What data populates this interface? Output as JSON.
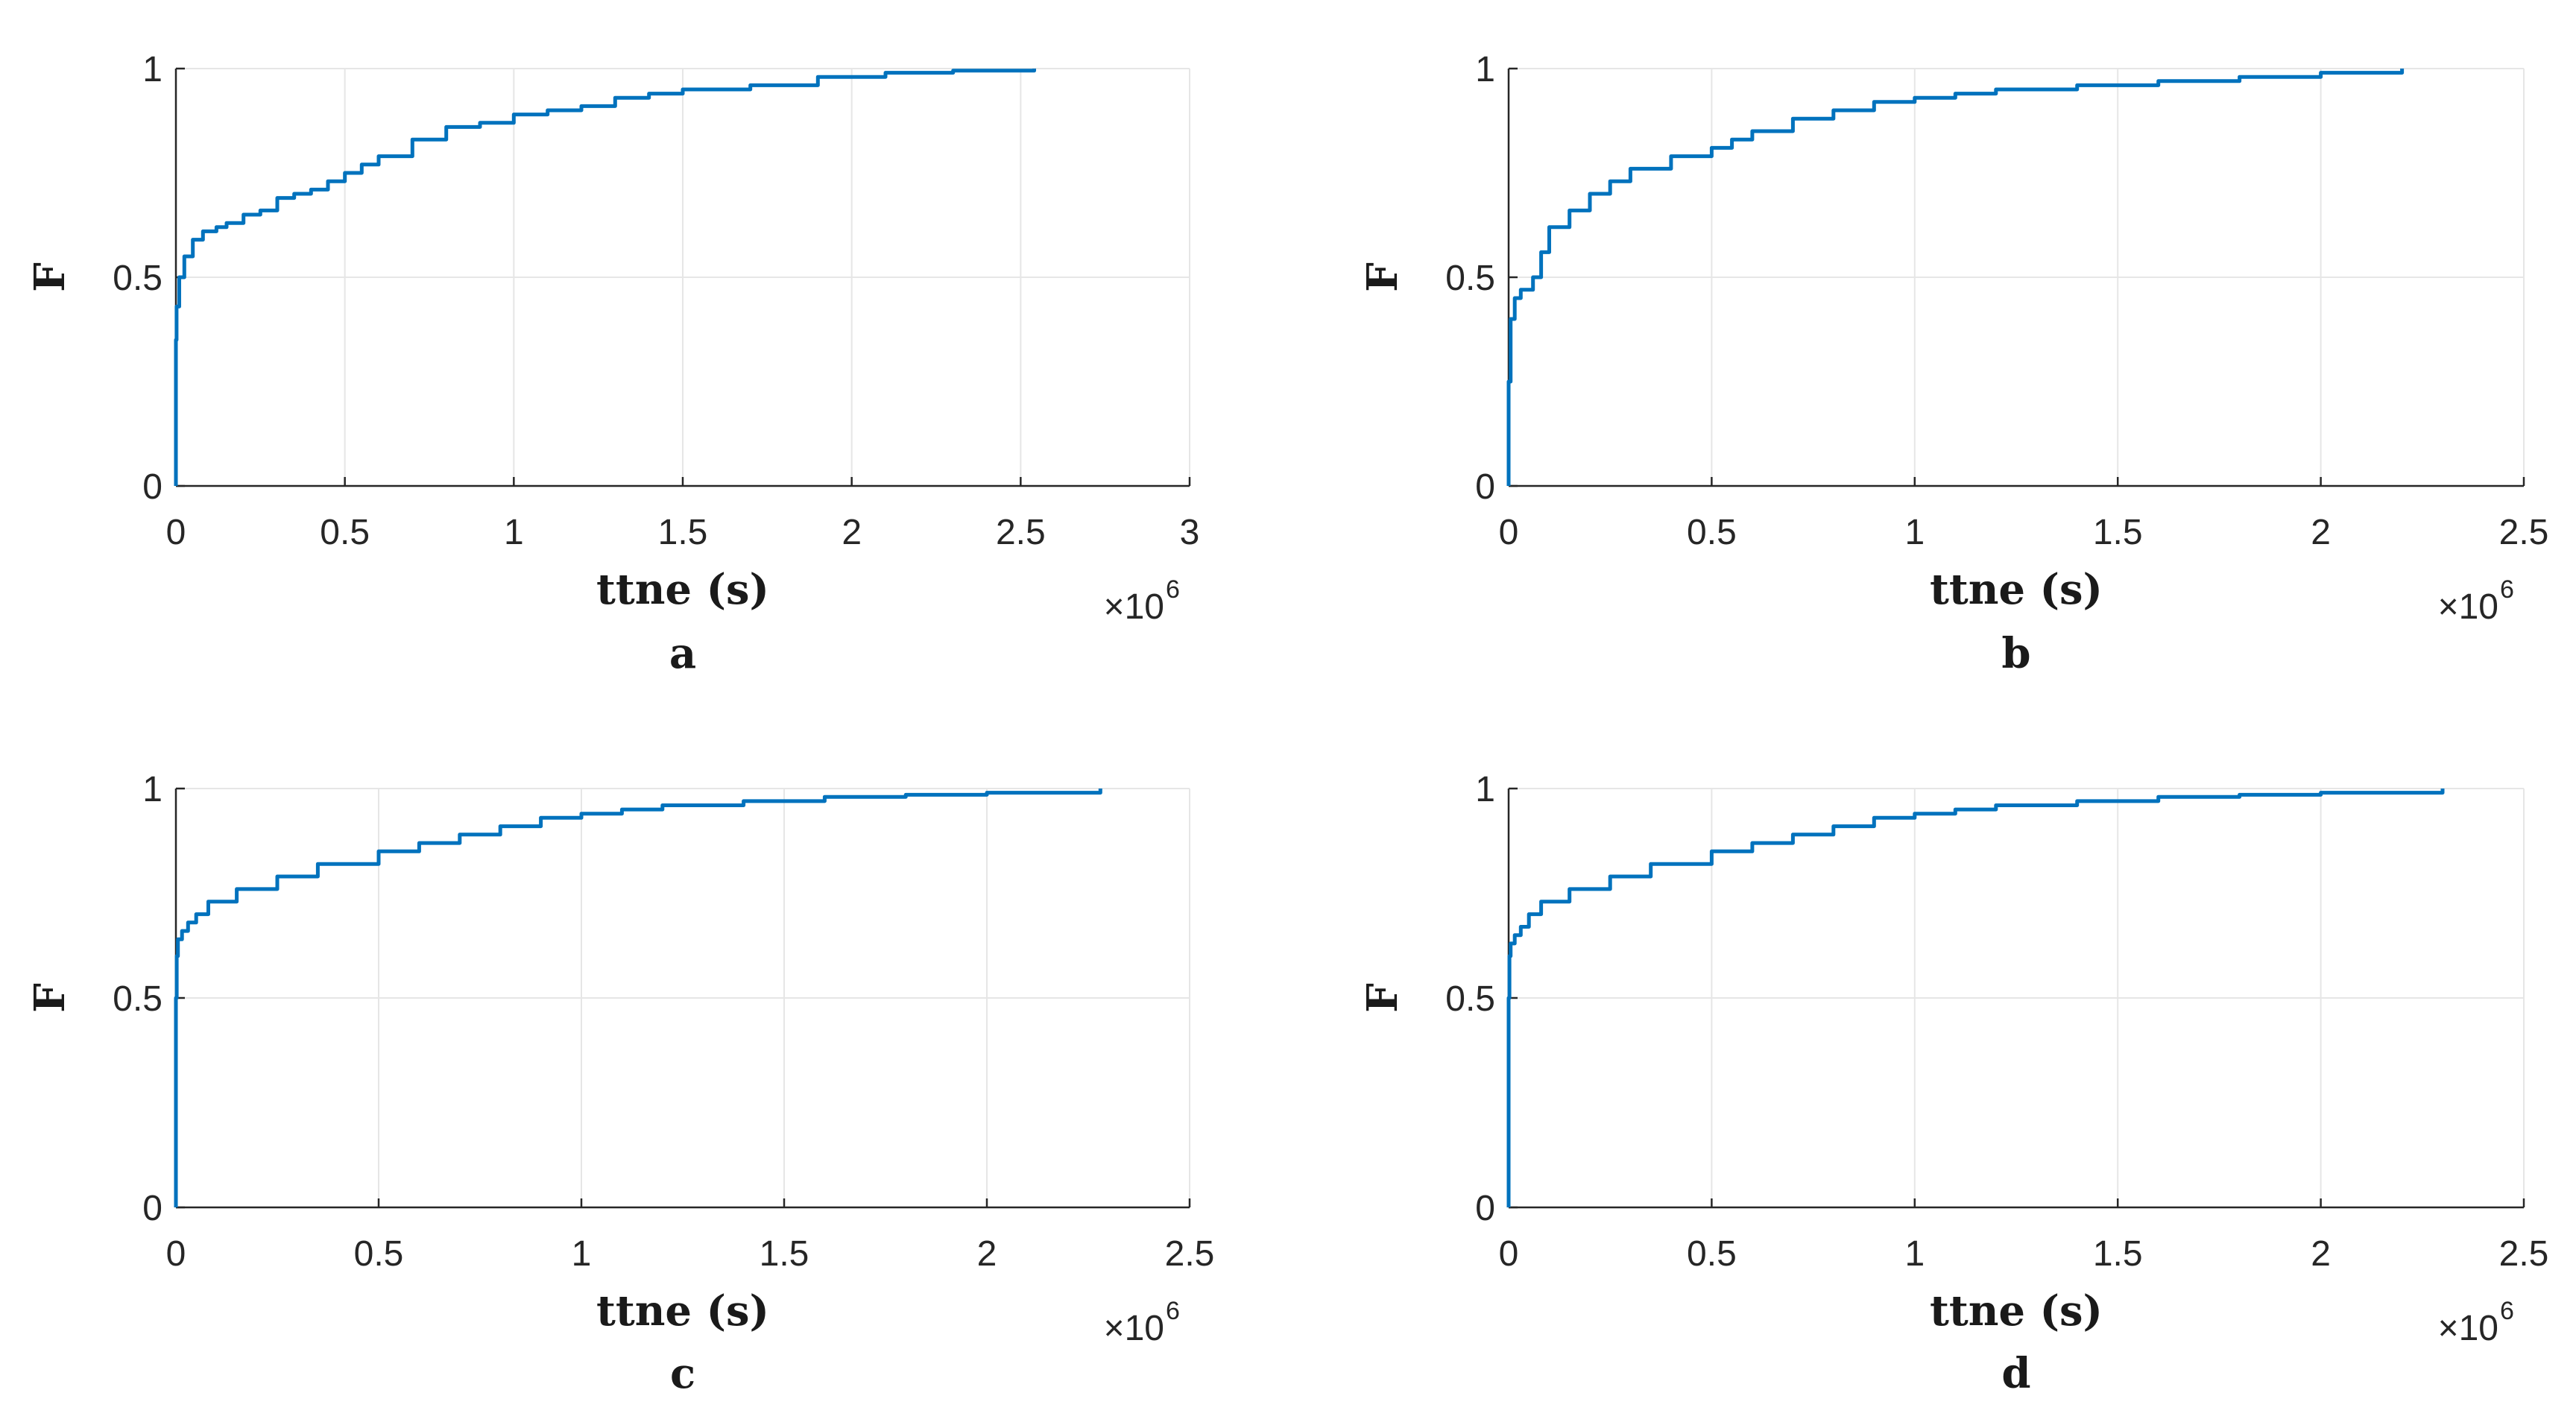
{
  "figure": {
    "series_color": "#0072BD",
    "grid_color": "#e6e6e6"
  },
  "chart_data": [
    {
      "id": "a",
      "type": "line",
      "panel_label": "a",
      "xlabel": "ttne (s)",
      "ylabel": "F",
      "xlim": [
        0,
        3000000
      ],
      "ylim": [
        0,
        1
      ],
      "xticks": [
        0,
        500000,
        1000000,
        1500000,
        2000000,
        2500000,
        3000000
      ],
      "xtick_labels": [
        "0",
        "0.5",
        "1",
        "1.5",
        "2",
        "2.5",
        "3"
      ],
      "yticks": [
        0,
        0.5,
        1
      ],
      "ytick_labels": [
        "0",
        "0.5",
        "1"
      ],
      "x_exponent": {
        "base": "×10",
        "power": "6"
      },
      "grid": true,
      "series": [
        {
          "name": "F",
          "x": [
            0,
            0,
            2000,
            10000,
            25000,
            50000,
            80000,
            120000,
            150000,
            200000,
            250000,
            300000,
            350000,
            400000,
            450000,
            500000,
            550000,
            600000,
            700000,
            800000,
            900000,
            1000000,
            1100000,
            1200000,
            1300000,
            1400000,
            1500000,
            1700000,
            1900000,
            2100000,
            2300000,
            2540000
          ],
          "y": [
            0,
            0.35,
            0.43,
            0.5,
            0.55,
            0.59,
            0.61,
            0.62,
            0.63,
            0.65,
            0.66,
            0.69,
            0.7,
            0.71,
            0.73,
            0.75,
            0.77,
            0.79,
            0.83,
            0.86,
            0.87,
            0.89,
            0.9,
            0.91,
            0.93,
            0.94,
            0.95,
            0.96,
            0.98,
            0.99,
            0.995,
            1.0
          ]
        }
      ]
    },
    {
      "id": "b",
      "type": "line",
      "panel_label": "b",
      "xlabel": "ttne (s)",
      "ylabel": "F",
      "xlim": [
        0,
        2500000
      ],
      "ylim": [
        0,
        1
      ],
      "xticks": [
        0,
        500000,
        1000000,
        1500000,
        2000000,
        2500000
      ],
      "xtick_labels": [
        "0",
        "0.5",
        "1",
        "1.5",
        "2",
        "2.5"
      ],
      "yticks": [
        0,
        0.5,
        1
      ],
      "ytick_labels": [
        "0",
        "0.5",
        "1"
      ],
      "x_exponent": {
        "base": "×10",
        "power": "6"
      },
      "grid": true,
      "series": [
        {
          "name": "F",
          "x": [
            0,
            0,
            5000,
            15000,
            30000,
            60000,
            80000,
            100000,
            150000,
            200000,
            250000,
            300000,
            400000,
            500000,
            550000,
            600000,
            700000,
            800000,
            900000,
            1000000,
            1100000,
            1200000,
            1400000,
            1600000,
            1800000,
            2000000,
            2200000
          ],
          "y": [
            0,
            0.25,
            0.4,
            0.45,
            0.47,
            0.5,
            0.56,
            0.62,
            0.66,
            0.7,
            0.73,
            0.76,
            0.79,
            0.81,
            0.83,
            0.85,
            0.88,
            0.9,
            0.92,
            0.93,
            0.94,
            0.95,
            0.96,
            0.97,
            0.98,
            0.99,
            1.0
          ]
        }
      ]
    },
    {
      "id": "c",
      "type": "line",
      "panel_label": "c",
      "xlabel": "ttne (s)",
      "ylabel": "F",
      "xlim": [
        0,
        2500000
      ],
      "ylim": [
        0,
        1
      ],
      "xticks": [
        0,
        500000,
        1000000,
        1500000,
        2000000,
        2500000
      ],
      "xtick_labels": [
        "0",
        "0.5",
        "1",
        "1.5",
        "2",
        "2.5"
      ],
      "yticks": [
        0,
        0.5,
        1
      ],
      "ytick_labels": [
        "0",
        "0.5",
        "1"
      ],
      "x_exponent": {
        "base": "×10",
        "power": "6"
      },
      "grid": true,
      "series": [
        {
          "name": "F",
          "x": [
            0,
            0,
            2000,
            5000,
            15000,
            30000,
            50000,
            80000,
            150000,
            250000,
            350000,
            500000,
            600000,
            700000,
            800000,
            900000,
            1000000,
            1100000,
            1200000,
            1400000,
            1600000,
            1800000,
            2000000,
            2280000
          ],
          "y": [
            0,
            0.5,
            0.6,
            0.64,
            0.66,
            0.68,
            0.7,
            0.73,
            0.76,
            0.79,
            0.82,
            0.85,
            0.87,
            0.89,
            0.91,
            0.93,
            0.94,
            0.95,
            0.96,
            0.97,
            0.98,
            0.985,
            0.99,
            1.0
          ]
        }
      ]
    },
    {
      "id": "d",
      "type": "line",
      "panel_label": "d",
      "xlabel": "ttne (s)",
      "ylabel": "F",
      "xlim": [
        0,
        2500000
      ],
      "ylim": [
        0,
        1
      ],
      "xticks": [
        0,
        500000,
        1000000,
        1500000,
        2000000,
        2500000
      ],
      "xtick_labels": [
        "0",
        "0.5",
        "1",
        "1.5",
        "2",
        "2.5"
      ],
      "yticks": [
        0,
        0.5,
        1
      ],
      "ytick_labels": [
        "0",
        "0.5",
        "1"
      ],
      "x_exponent": {
        "base": "×10",
        "power": "6"
      },
      "grid": true,
      "series": [
        {
          "name": "F",
          "x": [
            0,
            0,
            2000,
            5000,
            15000,
            30000,
            50000,
            80000,
            150000,
            250000,
            350000,
            500000,
            600000,
            700000,
            800000,
            900000,
            1000000,
            1100000,
            1200000,
            1400000,
            1600000,
            1800000,
            2000000,
            2300000
          ],
          "y": [
            0,
            0.5,
            0.6,
            0.63,
            0.65,
            0.67,
            0.7,
            0.73,
            0.76,
            0.79,
            0.82,
            0.85,
            0.87,
            0.89,
            0.91,
            0.93,
            0.94,
            0.95,
            0.96,
            0.97,
            0.98,
            0.985,
            0.99,
            1.0
          ]
        }
      ]
    }
  ]
}
